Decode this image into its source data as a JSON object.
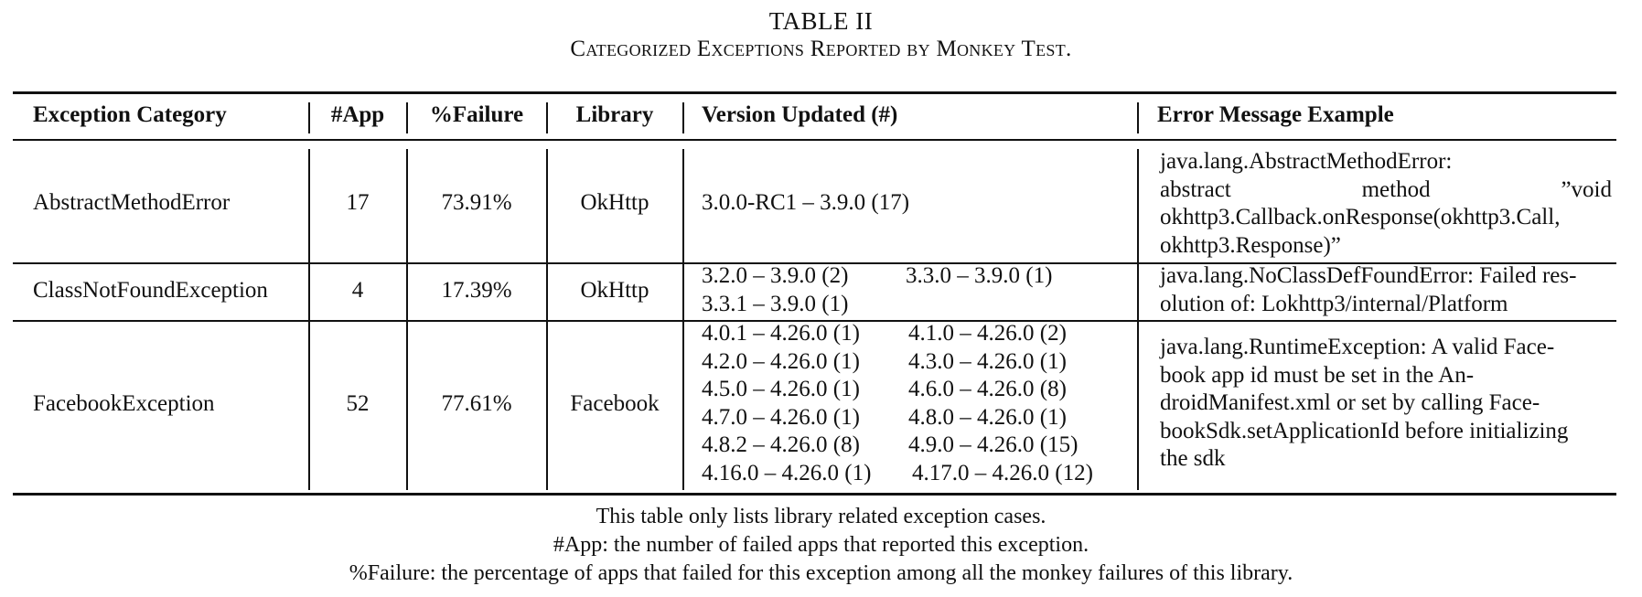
{
  "table": {
    "number": "TABLE II",
    "title": "Categorized Exceptions Reported by Monkey Test.",
    "headers": [
      "Exception Category",
      "#App",
      "%Failure",
      "Library",
      "Version Updated (#)",
      "Error Message Example"
    ],
    "rows": [
      {
        "category": "AbstractMethodError",
        "apps": "17",
        "failure": "73.91%",
        "library": "OkHttp",
        "versions": [
          "3.0.0-RC1 – 3.9.0 (17)"
        ],
        "message": [
          "java.lang.AbstractMethodError:",
          "abstract method ”void",
          "okhttp3.Callback.onResponse(okhttp3.Call,",
          "okhttp3.Response)”"
        ]
      },
      {
        "category": "ClassNotFoundException",
        "apps": "4",
        "failure": "17.39%",
        "library": "OkHttp",
        "versions": [
          "3.2.0 – 3.9.0 (2)",
          "3.3.0 – 3.9.0 (1)",
          "3.3.1 – 3.9.0 (1)"
        ],
        "message": [
          "java.lang.NoClassDefFoundError: Failed res-",
          "olution of: Lokhttp3/internal/Platform"
        ]
      },
      {
        "category": "FacebookException",
        "apps": "52",
        "failure": "77.61%",
        "library": "Facebook",
        "versions": [
          "4.0.1 – 4.26.0 (1)",
          "4.1.0 – 4.26.0 (2)",
          "4.2.0 – 4.26.0 (1)",
          "4.3.0 – 4.26.0 (1)",
          "4.5.0 – 4.26.0 (1)",
          "4.6.0 – 4.26.0 (8)",
          "4.7.0 – 4.26.0 (1)",
          "4.8.0 – 4.26.0 (1)",
          "4.8.2 – 4.26.0 (8)",
          "4.9.0 – 4.26.0 (15)",
          "4.16.0 – 4.26.0 (1)",
          "4.17.0 – 4.26.0 (12)"
        ],
        "message": [
          "java.lang.RuntimeException: A valid Face-",
          "book app id must be set in the An-",
          "droidManifest.xml or set by calling Face-",
          "bookSdk.setApplicationId before initializing",
          "the sdk"
        ]
      }
    ],
    "notes": [
      "This table only lists library related exception cases.",
      "#App: the number of failed apps that reported this exception.",
      "%Failure: the percentage of apps that failed for this exception among all the monkey failures of this library."
    ]
  }
}
